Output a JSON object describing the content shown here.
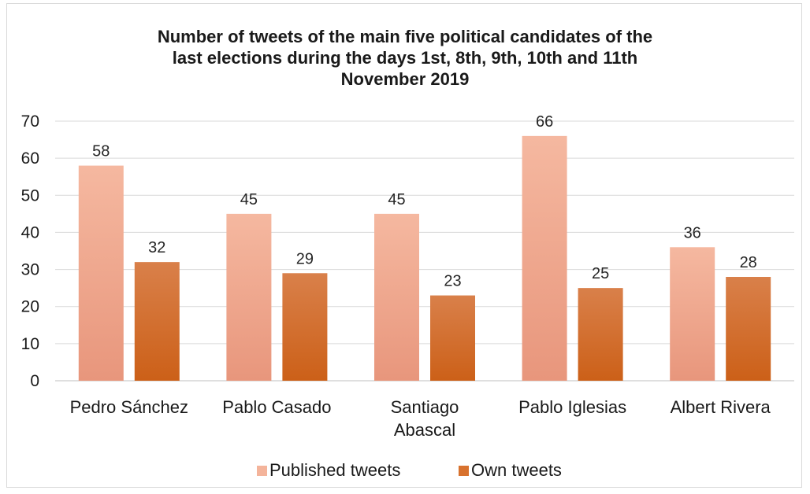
{
  "chart_data": {
    "type": "bar",
    "title": [
      "Number of tweets of the main five political candidates of the",
      "last elections during the days 1st, 8th, 9th, 10th and 11th",
      "November 2019"
    ],
    "categories": [
      [
        "Pedro Sánchez"
      ],
      [
        "Pablo Casado"
      ],
      [
        "Santiago",
        "Abascal"
      ],
      [
        "Pablo Iglesias"
      ],
      [
        "Albert Rivera"
      ]
    ],
    "series": [
      {
        "name": "Published tweets",
        "values": [
          58,
          45,
          45,
          66,
          36
        ],
        "color": "#f4b49b"
      },
      {
        "name": "Own tweets",
        "values": [
          32,
          29,
          23,
          25,
          28
        ],
        "color": "#d8722e"
      }
    ],
    "ylim": [
      0,
      70
    ],
    "yticks": [
      0,
      10,
      20,
      30,
      40,
      50,
      60,
      70
    ],
    "grid": true,
    "legend": "bottom",
    "data_labels": true
  }
}
